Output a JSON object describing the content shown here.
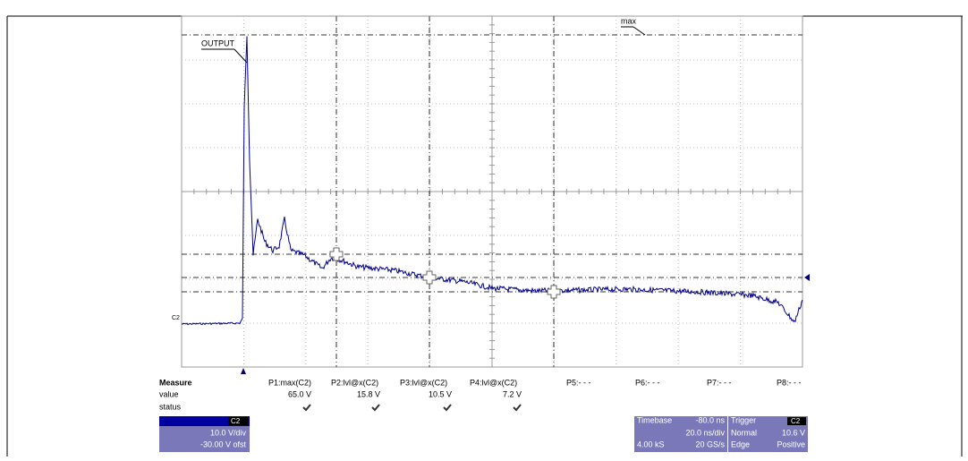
{
  "display": {
    "trace_label": "OUTPUT",
    "cursor_label": "max",
    "channel_marker": "C2"
  },
  "measure": {
    "title": "Measure",
    "row_labels": [
      "value",
      "status"
    ],
    "params": [
      {
        "name": "P1:max(C2)",
        "value": "65.0 V"
      },
      {
        "name": "P2:lvl@x(C2)",
        "value": "15.8 V"
      },
      {
        "name": "P3:lvl@x(C2)",
        "value": "10.5 V"
      },
      {
        "name": "P4:lvl@x(C2)",
        "value": "7.2 V"
      },
      {
        "name": "P5:- - -"
      },
      {
        "name": "P6:- - -"
      },
      {
        "name": "P7:- - -"
      },
      {
        "name": "P8:- - -"
      }
    ]
  },
  "channel": {
    "name": "C2",
    "scale": "10.0 V/div",
    "offset": "-30.00 V ofst"
  },
  "timebase": {
    "title": "Timebase",
    "delay": "-80.0 ns",
    "scale": "20.0 ns/div",
    "samples": "4.00 kS",
    "rate": "20 GS/s"
  },
  "trigger": {
    "title": "Trigger",
    "source": "C2",
    "mode": "Normal",
    "level": "10.6 V",
    "type": "Edge",
    "slope": "Positive"
  }
}
